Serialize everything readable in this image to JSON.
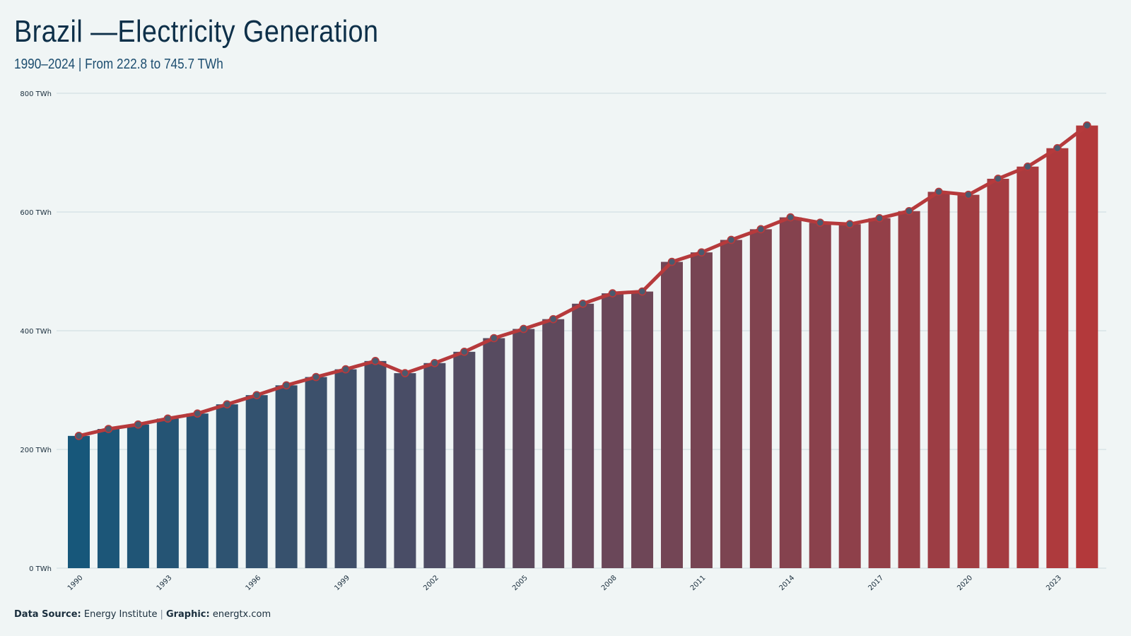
{
  "header": {
    "title": "Brazil —Electricity Generation",
    "subtitle": "1990–2024 | From 222.8 to 745.7 TWh"
  },
  "footer": {
    "source_label": "Data Source:",
    "source_value": "Energy Institute",
    "separator": "|",
    "graphic_label": "Graphic:",
    "graphic_value": "energtx.com"
  },
  "colors": {
    "background": "#f0f5f5",
    "bar_start": "#17577a",
    "bar_end": "#b3393b",
    "line": "#b63a3c",
    "marker_fill": "#4a5a6e",
    "gridline": "#d4e0e3"
  },
  "chart_data": {
    "type": "bar",
    "overlay": "line-with-markers",
    "x": [
      1990,
      1991,
      1992,
      1993,
      1994,
      1995,
      1996,
      1997,
      1998,
      1999,
      2000,
      2001,
      2002,
      2003,
      2004,
      2005,
      2006,
      2007,
      2008,
      2009,
      2010,
      2011,
      2012,
      2013,
      2014,
      2015,
      2016,
      2017,
      2018,
      2019,
      2020,
      2021,
      2022,
      2023,
      2024
    ],
    "values": [
      222.8,
      234.5,
      242,
      252,
      260.5,
      276,
      291.5,
      308,
      322,
      335,
      349,
      328.5,
      345.5,
      364.5,
      387.5,
      403,
      419.5,
      445.5,
      463,
      466,
      516,
      532,
      553,
      571,
      591,
      582,
      579.5,
      589.5,
      601.5,
      634,
      629,
      656,
      676.5,
      707.5,
      745.7
    ],
    "xticks": [
      1990,
      1993,
      1996,
      1999,
      2002,
      2005,
      2008,
      2011,
      2014,
      2017,
      2020,
      2023
    ],
    "yticks": [
      0,
      200,
      400,
      600,
      800
    ],
    "ytick_labels": [
      "0 TWh",
      "200 TWh",
      "400 TWh",
      "600 TWh",
      "800 TWh"
    ],
    "ylim": [
      0,
      800
    ],
    "grid": "horizontal",
    "title": "Brazil —Electricity Generation",
    "subtitle": "1990–2024 | From 222.8 to 745.7 TWh"
  }
}
